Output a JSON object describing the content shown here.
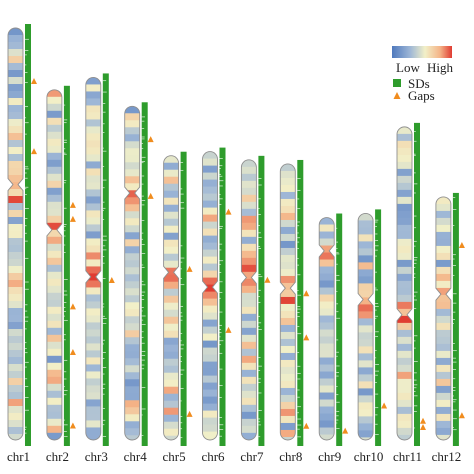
{
  "legend": {
    "scale_low": "Low",
    "scale_high": "High",
    "scale_colors": [
      "#4f79bd",
      "#9db6d6",
      "#f2f0c8",
      "#f4b488",
      "#e03c32"
    ],
    "sd_label": "SDs",
    "sd_color": "#2e9c2c",
    "gap_label": "Gaps",
    "gap_color": "#f08c1e"
  },
  "chromosomes": [
    {
      "name": "chr1",
      "length": 100,
      "centromere": 0.38,
      "gaps": [
        0.13,
        0.3
      ]
    },
    {
      "name": "chr2",
      "length": 85,
      "centromere": 0.4,
      "gaps": [
        0.33,
        0.37,
        0.62,
        0.75,
        0.96
      ]
    },
    {
      "name": "chr3",
      "length": 88,
      "centromere": 0.55,
      "gaps": [
        0.56
      ]
    },
    {
      "name": "chr4",
      "length": 81,
      "centromere": 0.26,
      "gaps": [
        0.1,
        0.27
      ]
    },
    {
      "name": "chr5",
      "length": 69,
      "centromere": 0.41,
      "gaps": [
        0.4,
        0.91
      ]
    },
    {
      "name": "chr6",
      "length": 70,
      "centromere": 0.47,
      "gaps": [
        0.21,
        0.62
      ]
    },
    {
      "name": "chr7",
      "length": 68,
      "centromere": 0.42,
      "gaps": [
        0.43
      ]
    },
    {
      "name": "chr8",
      "length": 67,
      "centromere": 0.45,
      "gaps": [
        0.47,
        0.63,
        0.95
      ]
    },
    {
      "name": "chr9",
      "length": 54,
      "centromere": 0.15,
      "gaps": [
        0.96
      ]
    },
    {
      "name": "chr10",
      "length": 55,
      "centromere": 0.38,
      "gaps": [
        0.85
      ]
    },
    {
      "name": "chr11",
      "length": 76,
      "centromere": 0.6,
      "gaps": [
        0.94,
        0.96
      ]
    },
    {
      "name": "chr12",
      "length": 59,
      "centromere": 0.4,
      "gaps": [
        0.2,
        0.9
      ]
    }
  ]
}
